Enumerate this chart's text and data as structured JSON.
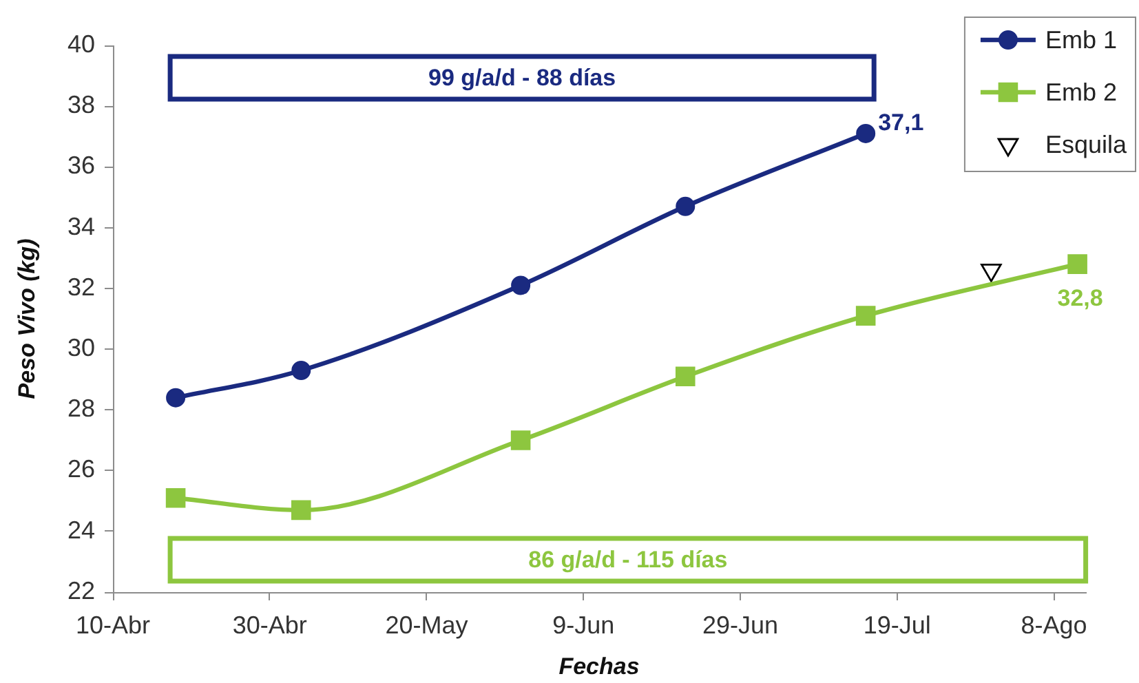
{
  "chart_data": {
    "type": "line",
    "xlabel": "Fechas",
    "ylabel": "Peso Vivo (kg)",
    "x": [
      "--04-18",
      "--05-04",
      "--06-01",
      "--06-22",
      "--07-15",
      "--08-11"
    ],
    "series": [
      {
        "name": "Emb 1",
        "color": "#1a2a80",
        "marker": "circle",
        "values": [
          28.4,
          29.3,
          32.1,
          34.7,
          37.1,
          null
        ],
        "value_labels": [
          null,
          null,
          null,
          null,
          "37,1",
          null
        ]
      },
      {
        "name": "Emb 2",
        "color": "#8dc63f",
        "marker": "square",
        "values": [
          25.1,
          24.7,
          27.0,
          29.1,
          31.1,
          32.8
        ],
        "value_labels": [
          null,
          null,
          null,
          null,
          null,
          "32,8"
        ]
      },
      {
        "name": "Esquila",
        "type": "scatter",
        "color": "#000000",
        "marker": "triangle",
        "x": [
          "--07-31"
        ],
        "values": [
          32.6
        ]
      }
    ],
    "annotations": [
      "99 g/a/d - 88 días",
      "86 g/a/d - 115 días"
    ],
    "xlim": [
      "--04-10",
      "--08-12"
    ],
    "xticks": [
      {
        "value": "--04-10",
        "label": "10-Abr"
      },
      {
        "value": "--04-30",
        "label": "30-Abr"
      },
      {
        "value": "--05-20",
        "label": "20-May"
      },
      {
        "value": "--06-09",
        "label": "9-Jun"
      },
      {
        "value": "--06-29",
        "label": "29-Jun"
      },
      {
        "value": "--07-19",
        "label": "19-Jul"
      },
      {
        "value": "--08-08",
        "label": "8-Ago"
      }
    ],
    "ylim": [
      22,
      40
    ],
    "yticks": [
      22,
      24,
      26,
      28,
      30,
      32,
      34,
      36,
      38,
      40
    ],
    "grid": false,
    "legend": "top right"
  }
}
